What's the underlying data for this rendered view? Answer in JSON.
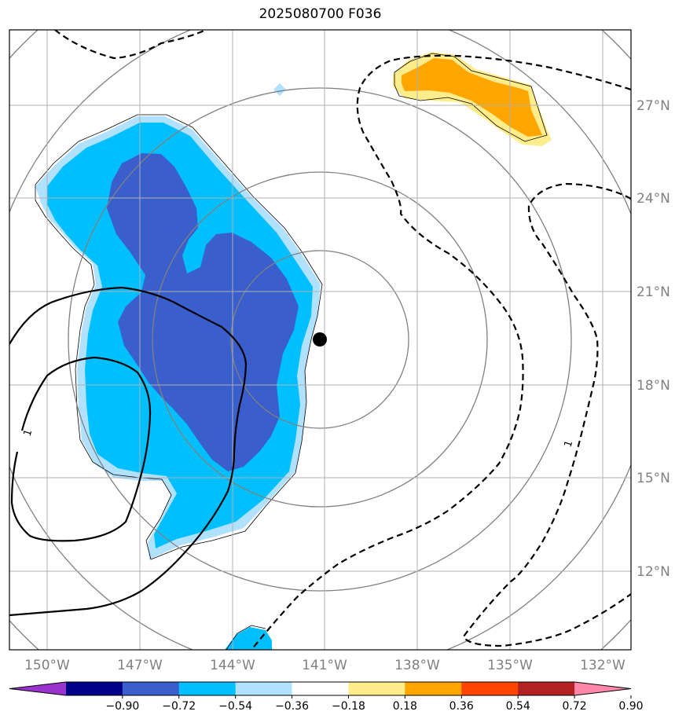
{
  "title": "2025080700 F036",
  "longitude_labels": [
    "150°W",
    "147°W",
    "144°W",
    "141°W",
    "138°W",
    "135°W",
    "132°W"
  ],
  "latitude_labels": [
    "27°N",
    "24°N",
    "21°N",
    "18°N",
    "15°N",
    "12°N"
  ],
  "colorbar": {
    "ticks": [
      "−0.90",
      "−0.72",
      "−0.54",
      "−0.36",
      "−0.18",
      "0.18",
      "0.36",
      "0.54",
      "0.72",
      "0.90"
    ],
    "colors": [
      "#9933cc",
      "#00008b",
      "#3a5fcd",
      "#00bfff",
      "#b0e2ff",
      "#ffffff",
      "#ffec8b",
      "#ffa500",
      "#ff4500",
      "#b22222",
      "#ff88aa"
    ]
  },
  "contour_labels": [
    "1",
    "1"
  ],
  "storm_center": {
    "lon": -141.0,
    "lat": 19.5
  },
  "colors": {
    "range_rings": "#808080",
    "grid": "#b0b0b0",
    "contour": "#000000"
  }
}
